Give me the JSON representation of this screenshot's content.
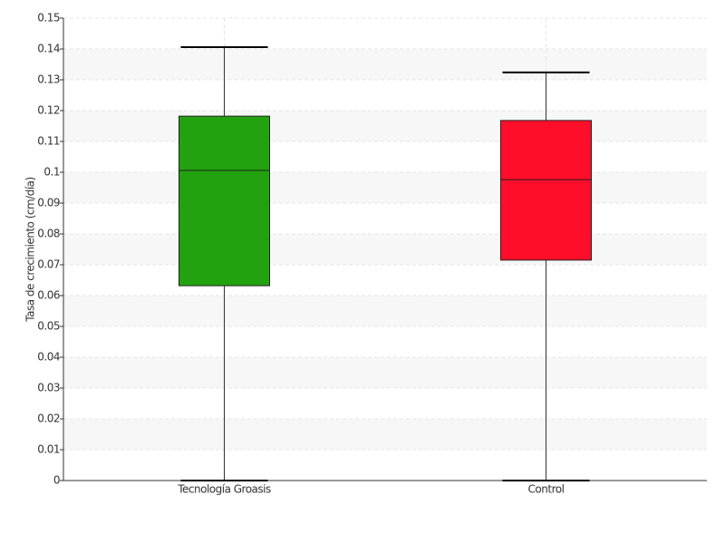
{
  "chart_data": {
    "type": "box",
    "y_label": "Tasa de crecimiento (cm/día)",
    "categories": [
      "Tecnología Groasis",
      "Control"
    ],
    "boxes": [
      {
        "color": "#22a20f",
        "min": 0,
        "q1": 0.0632,
        "median": 0.1006,
        "q3": 0.1182,
        "max": 0.1406
      },
      {
        "color": "#ff0e2a",
        "min": 0,
        "q1": 0.0715,
        "median": 0.0976,
        "q3": 0.1168,
        "max": 0.1324
      }
    ],
    "ylim": [
      0,
      0.15
    ],
    "yticks": [
      0,
      0.01,
      0.02,
      0.03,
      0.04,
      0.05,
      0.06,
      0.07,
      0.08,
      0.09,
      0.1,
      0.11,
      0.12,
      0.13,
      0.14,
      0.15
    ],
    "grid": true
  }
}
